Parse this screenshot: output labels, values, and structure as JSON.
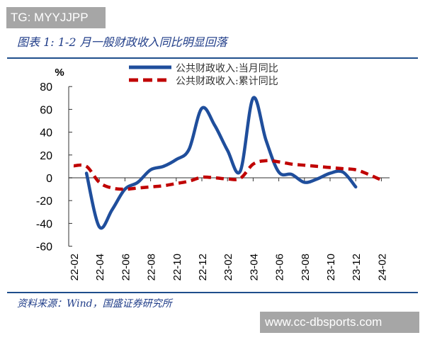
{
  "watermark_top": "TG: MYYJJPP",
  "watermark_bottom": "www.cc-dbsports.com",
  "title": "图表 1:  1-2 月一般财政收入同比明显回落",
  "source": "资料来源：Wind，国盛证券研究所",
  "chart_data": {
    "type": "line",
    "ylabel": "%",
    "ylim": [
      -60,
      80
    ],
    "yticks": [
      80,
      60,
      40,
      20,
      0,
      -20,
      -40,
      -60
    ],
    "xticks": [
      "22-02",
      "22-04",
      "22-06",
      "22-08",
      "22-10",
      "22-12",
      "23-02",
      "23-04",
      "23-06",
      "23-08",
      "23-10",
      "23-12",
      "24-02"
    ],
    "x": [
      "22-02",
      "22-03",
      "22-04",
      "22-05",
      "22-06",
      "22-07",
      "22-08",
      "22-09",
      "22-10",
      "22-11",
      "22-12",
      "23-01",
      "23-02",
      "23-03",
      "23-04",
      "23-05",
      "23-06",
      "23-07",
      "23-08",
      "23-09",
      "23-10",
      "23-11",
      "23-12",
      "24-01",
      "24-02"
    ],
    "legend_position": "top",
    "series": [
      {
        "name": "公共财政收入:当月同比",
        "color": "#1f4e9c",
        "style": "solid",
        "values": [
          null,
          4,
          -43,
          -28,
          -10,
          -4,
          7,
          10,
          16,
          25,
          61,
          46,
          24,
          6,
          70,
          33,
          5,
          3,
          -4,
          -1,
          4,
          5,
          -8,
          null,
          null
        ]
      },
      {
        "name": "公共财政收入:累计同比",
        "color": "#c00000",
        "style": "dashed",
        "values": [
          10.5,
          10,
          -4,
          -9,
          -10,
          -9,
          -8,
          -7,
          -5,
          -3,
          0.5,
          0,
          -1,
          -0.5,
          12,
          15,
          14,
          12,
          11,
          10,
          9,
          8,
          7,
          3,
          -2
        ]
      }
    ]
  }
}
